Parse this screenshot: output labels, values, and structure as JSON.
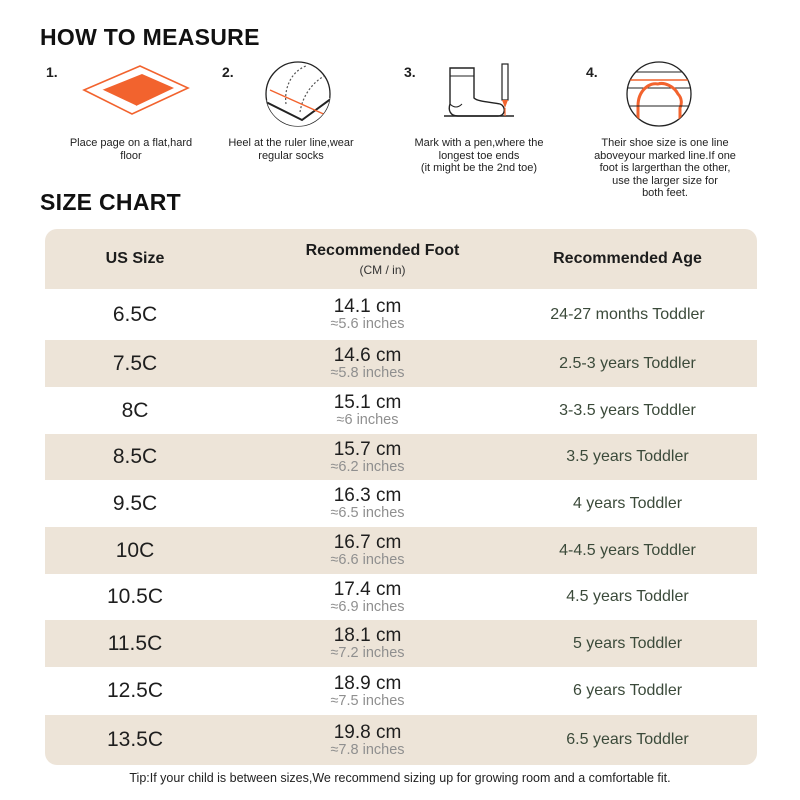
{
  "how_to_measure": {
    "title": "HOW TO MEASURE",
    "steps": [
      {
        "num": "1.",
        "icon": "paper-on-surface-icon",
        "text": "Place page on a flat,hard\nfloor"
      },
      {
        "num": "2.",
        "icon": "heel-on-ruler-icon",
        "text": "Heel at the ruler line,wear\nregular socks"
      },
      {
        "num": "3.",
        "icon": "sock-and-pen-icon",
        "text": "Mark with a pen,where the\nlongest toe ends\n(it might be the 2nd toe)"
      },
      {
        "num": "4.",
        "icon": "toe-mark-line-icon",
        "text": "Their shoe size is one line\naboveyour marked line.If one\nfoot is largerthan the other,\nuse the larger size for\nboth feet."
      }
    ]
  },
  "size_chart": {
    "title": "SIZE CHART",
    "headers": {
      "us_size": "US Size",
      "foot": "Recommended Foot",
      "foot_sub": "(CM / in)",
      "age": "Recommended Age"
    },
    "rows": [
      {
        "size": "6.5C",
        "cm": "14.1 cm",
        "inch": "≈5.6 inches",
        "age": "24-27 months Toddler"
      },
      {
        "size": "7.5C",
        "cm": "14.6 cm",
        "inch": "≈5.8 inches",
        "age": "2.5-3 years Toddler"
      },
      {
        "size": "8C",
        "cm": "15.1 cm",
        "inch": "≈6 inches",
        "age": "3-3.5 years Toddler"
      },
      {
        "size": "8.5C",
        "cm": "15.7 cm",
        "inch": "≈6.2 inches",
        "age": "3.5 years Toddler"
      },
      {
        "size": "9.5C",
        "cm": "16.3 cm",
        "inch": "≈6.5 inches",
        "age": "4 years Toddler"
      },
      {
        "size": "10C",
        "cm": "16.7 cm",
        "inch": "≈6.6 inches",
        "age": "4-4.5 years Toddler"
      },
      {
        "size": "10.5C",
        "cm": "17.4 cm",
        "inch": "≈6.9 inches",
        "age": "4.5 years Toddler"
      },
      {
        "size": "11.5C",
        "cm": "18.1 cm",
        "inch": "≈7.2 inches",
        "age": "5 years Toddler"
      },
      {
        "size": "12.5C",
        "cm": "18.9 cm",
        "inch": "≈7.5 inches",
        "age": "6 years Toddler"
      },
      {
        "size": "13.5C",
        "cm": "19.8 cm",
        "inch": "≈7.8 inches",
        "age": "6.5 years Toddler"
      }
    ]
  },
  "tip": "Tip:If your child is between sizes,We recommend sizing up for growing room and a comfortable fit.",
  "colors": {
    "accent": "#f2632e",
    "band": "#ede4d8",
    "age_text": "#3b4a3a",
    "inch_text": "#8f8f8f"
  }
}
